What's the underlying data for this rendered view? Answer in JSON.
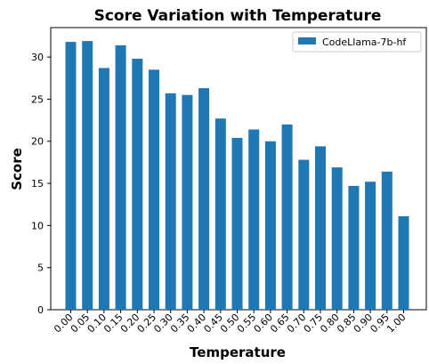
{
  "chart_data": {
    "type": "bar",
    "title": "Score Variation with Temperature",
    "xlabel": "Temperature",
    "ylabel": "Score",
    "ylim": [
      0,
      33.5
    ],
    "yticks": [
      0,
      5,
      10,
      15,
      20,
      25,
      30
    ],
    "grid": false,
    "legend": "top-right",
    "categories": [
      "0.00",
      "0.05",
      "0.10",
      "0.15",
      "0.20",
      "0.25",
      "0.30",
      "0.35",
      "0.40",
      "0.45",
      "0.50",
      "0.55",
      "0.60",
      "0.65",
      "0.70",
      "0.75",
      "0.80",
      "0.85",
      "0.90",
      "0.95",
      "1.00"
    ],
    "series": [
      {
        "name": "CodeLlama-7b-hf",
        "color": "#1f77b4",
        "values": [
          31.8,
          31.9,
          28.7,
          31.4,
          29.8,
          28.5,
          25.7,
          25.5,
          26.3,
          22.7,
          20.4,
          21.4,
          20.0,
          22.0,
          17.8,
          19.4,
          16.9,
          14.7,
          15.2,
          16.4,
          11.1
        ]
      }
    ]
  }
}
